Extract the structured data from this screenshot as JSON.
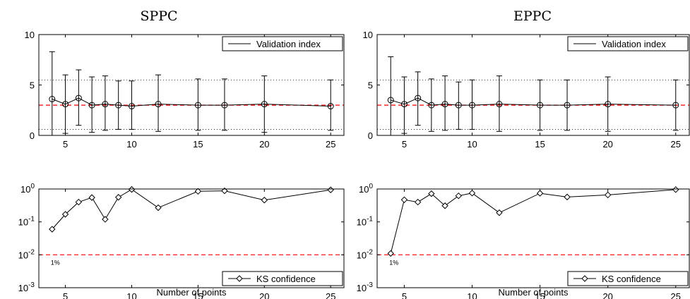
{
  "chart_data": [
    {
      "id": "sppc-validation",
      "type": "line",
      "title": "SPPC",
      "xlabel": "",
      "ylabel": "",
      "xlim": [
        3,
        26
      ],
      "ylim": [
        0,
        10
      ],
      "xticks": [
        5,
        10,
        15,
        20,
        25
      ],
      "yticks": [
        0,
        5,
        10
      ],
      "legend": "top-right",
      "series": [
        {
          "name": "Validation index",
          "x": [
            4,
            5,
            6,
            7,
            8,
            9,
            10,
            12,
            15,
            17,
            20,
            25
          ],
          "y": [
            3.6,
            3.1,
            3.7,
            3.0,
            3.1,
            3.0,
            2.9,
            3.1,
            3.0,
            3.0,
            3.1,
            2.9
          ],
          "err_low": [
            0.0,
            0.2,
            1.0,
            0.3,
            0.5,
            0.6,
            0.6,
            0.4,
            0.5,
            0.5,
            0.3,
            0.5
          ],
          "err_high": [
            8.3,
            6.0,
            6.5,
            5.8,
            5.9,
            5.4,
            5.4,
            6.0,
            5.6,
            5.6,
            5.9,
            5.5
          ]
        }
      ],
      "ref_line": 3.0,
      "dotted_lines": [
        0.6,
        5.5
      ]
    },
    {
      "id": "eppc-validation",
      "type": "line",
      "title": "EPPC",
      "xlabel": "",
      "ylabel": "",
      "xlim": [
        3,
        26
      ],
      "ylim": [
        0,
        10
      ],
      "xticks": [
        5,
        10,
        15,
        20,
        25
      ],
      "yticks": [
        0,
        5,
        10
      ],
      "legend": "top-right",
      "series": [
        {
          "name": "Validation index",
          "x": [
            4,
            5,
            6,
            7,
            8,
            9,
            10,
            12,
            15,
            17,
            20,
            25
          ],
          "y": [
            3.5,
            3.1,
            3.7,
            3.0,
            3.1,
            3.0,
            3.0,
            3.1,
            3.0,
            3.0,
            3.1,
            3.0
          ],
          "err_low": [
            0.0,
            0.2,
            1.0,
            0.4,
            0.5,
            0.6,
            0.6,
            0.4,
            0.5,
            0.5,
            0.4,
            0.5
          ],
          "err_high": [
            7.8,
            5.8,
            6.3,
            5.6,
            5.9,
            5.3,
            5.5,
            5.9,
            5.5,
            5.5,
            5.8,
            5.5
          ]
        }
      ],
      "ref_line": 3.0,
      "dotted_lines": [
        0.6,
        5.5
      ]
    },
    {
      "id": "sppc-ks",
      "type": "line",
      "title": "",
      "xlabel": "Number of points",
      "ylabel": "",
      "xlim": [
        3,
        26
      ],
      "ylim": [
        0.001,
        1
      ],
      "yscale": "log",
      "xticks": [
        5,
        10,
        15,
        20,
        25
      ],
      "yticks": [
        0.001,
        0.01,
        0.1,
        1
      ],
      "legend": "bottom-right",
      "series": [
        {
          "name": "KS confidence",
          "x": [
            4,
            5,
            6,
            7,
            8,
            9,
            10,
            12,
            15,
            17,
            20,
            25
          ],
          "y": [
            0.06,
            0.17,
            0.4,
            0.55,
            0.12,
            0.56,
            0.97,
            0.27,
            0.85,
            0.88,
            0.46,
            0.94
          ]
        }
      ],
      "ref_line": 0.01,
      "ref_label": "1%"
    },
    {
      "id": "eppc-ks",
      "type": "line",
      "title": "",
      "xlabel": "Number of points",
      "ylabel": "",
      "xlim": [
        3,
        26
      ],
      "ylim": [
        0.001,
        1
      ],
      "yscale": "log",
      "xticks": [
        5,
        10,
        15,
        20,
        25
      ],
      "yticks": [
        0.001,
        0.01,
        0.1,
        1
      ],
      "legend": "bottom-right",
      "series": [
        {
          "name": "KS confidence",
          "x": [
            4,
            5,
            6,
            7,
            8,
            9,
            10,
            12,
            15,
            17,
            20,
            25
          ],
          "y": [
            0.011,
            0.47,
            0.4,
            0.72,
            0.31,
            0.62,
            0.75,
            0.19,
            0.74,
            0.57,
            0.66,
            0.96
          ]
        }
      ],
      "ref_line": 0.01,
      "ref_label": "1%"
    }
  ],
  "colors": {
    "series": "#000000",
    "reference": "#ff0000",
    "dotted": "#000000",
    "background": "#ffffff"
  }
}
